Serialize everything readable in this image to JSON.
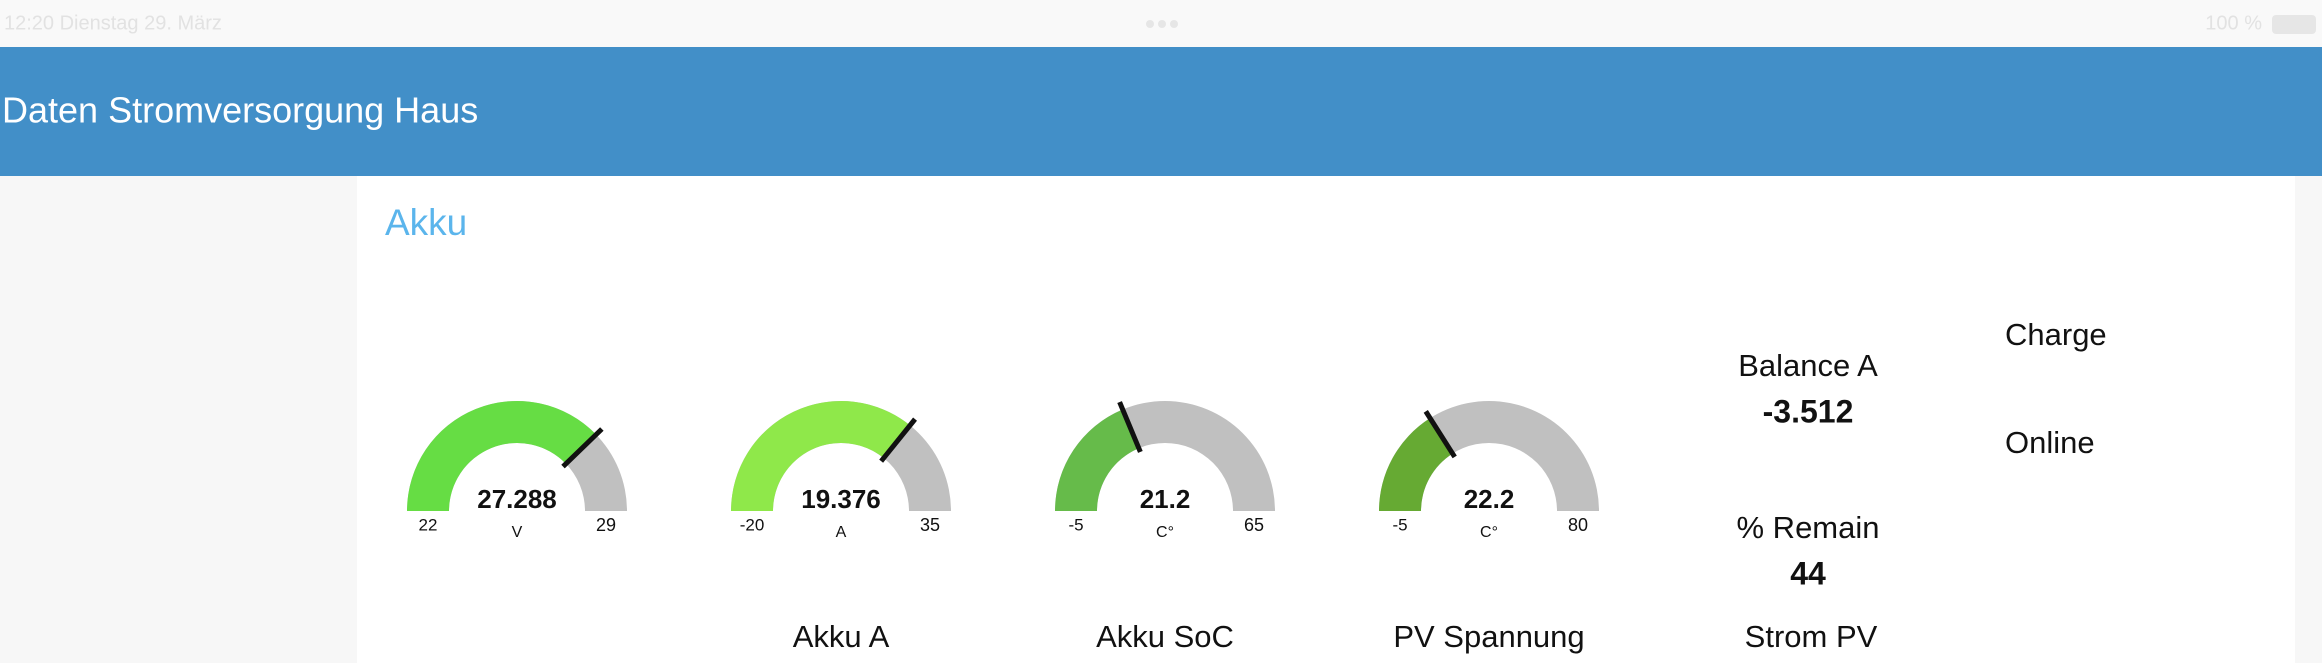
{
  "status_bar": {
    "time_date": "12:20  Dienstag 29. März",
    "battery": "100 %"
  },
  "header": {
    "title": "Daten Stromversorgung Haus"
  },
  "group": {
    "title": "Akku"
  },
  "gauges": [
    {
      "value": 27.288,
      "unit": "V",
      "min": 22,
      "max": 29,
      "color": "#66dd44"
    },
    {
      "value": 19.376,
      "unit": "A",
      "min": -20,
      "max": 35,
      "color": "#8fe84a"
    },
    {
      "value": 21.2,
      "unit": "C°",
      "min": -5,
      "max": 65,
      "color": "#66bb4a"
    },
    {
      "value": 22.2,
      "unit": "C°",
      "min": -5,
      "max": 80,
      "color": "#66aa33"
    }
  ],
  "text_widgets": [
    {
      "label": "Balance A",
      "value": -3.512
    },
    {
      "label": "% Remain",
      "value": 44
    }
  ],
  "status_labels": [
    "Charge",
    "Online"
  ],
  "next_row_labels": [
    "Akku A",
    "Akku SoC",
    "PV Spannung",
    "Strom PV"
  ]
}
